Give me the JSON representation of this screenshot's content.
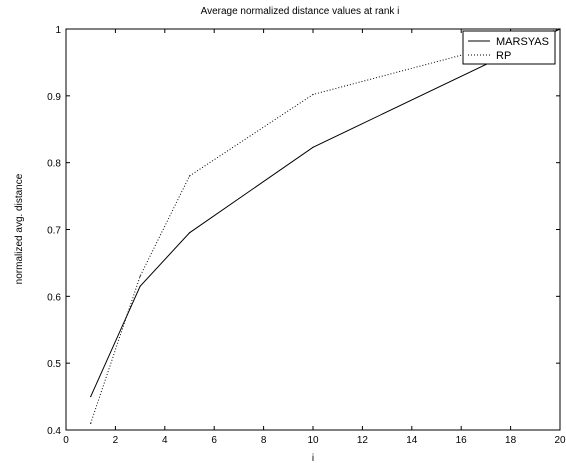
{
  "chart_data": {
    "type": "line",
    "title": "Average normalized distance values at rank i",
    "xlabel": "i",
    "ylabel": "normalized avg. distance",
    "xlim": [
      0,
      20
    ],
    "ylim": [
      0.4,
      1.0
    ],
    "x_ticks": [
      "0",
      "2",
      "4",
      "6",
      "8",
      "10",
      "12",
      "14",
      "16",
      "18",
      "20"
    ],
    "y_ticks": [
      "0.4",
      "0.5",
      "0.6",
      "0.7",
      "0.8",
      "0.9",
      "1"
    ],
    "grid": false,
    "legend_position": "top-right",
    "series": [
      {
        "name": "MARSYAS",
        "style": "solid",
        "color": "#000000",
        "x": [
          1,
          3,
          5,
          10,
          20
        ],
        "y": [
          0.45,
          0.615,
          0.695,
          0.823,
          1.0
        ]
      },
      {
        "name": "RP",
        "style": "dotted",
        "color": "#000000",
        "x": [
          1,
          3,
          5,
          10,
          20
        ],
        "y": [
          0.41,
          0.63,
          0.78,
          0.902,
          1.0
        ]
      }
    ]
  }
}
